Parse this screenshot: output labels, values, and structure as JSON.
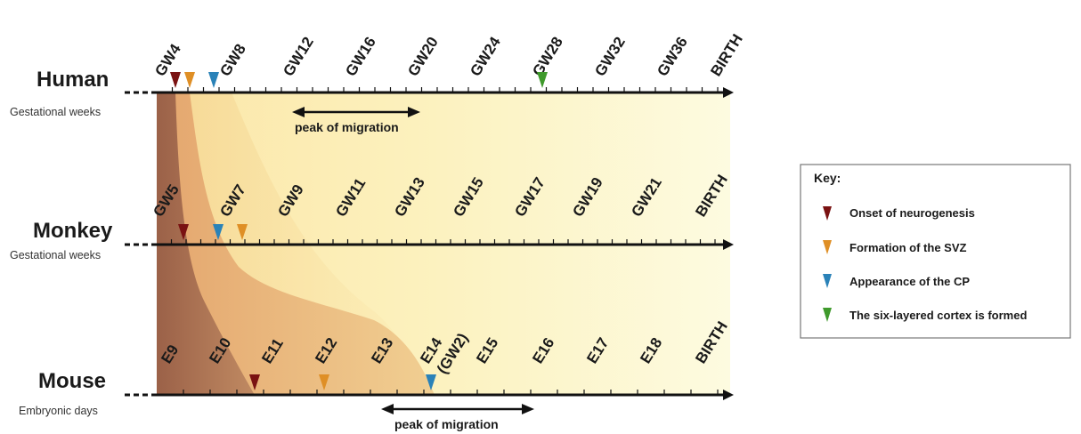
{
  "colors": {
    "onset": "#7a1212",
    "svz": "#df8f26",
    "cp": "#2a82b8",
    "six_layer": "#3f9a2c",
    "axis": "#111111"
  },
  "timelines": [
    {
      "id": "human",
      "species": "Human",
      "unit_label": "Gestational weeks",
      "ticks": [
        "GW4",
        "GW8",
        "GW12",
        "GW16",
        "GW20",
        "GW24",
        "GW28",
        "GW32",
        "GW36",
        "BIRTH"
      ],
      "peak_label": "peak of migration"
    },
    {
      "id": "monkey",
      "species": "Monkey",
      "unit_label": "Gestational weeks",
      "ticks": [
        "GW5",
        "GW7",
        "GW9",
        "GW11",
        "GW13",
        "GW15",
        "GW17",
        "GW19",
        "GW21",
        "BIRTH"
      ],
      "peak_label": ""
    },
    {
      "id": "mouse",
      "species": "Mouse",
      "unit_label": "Embryonic days",
      "ticks": [
        "E9",
        "E10",
        "E11",
        "E12",
        "E13",
        "E14\n(GW2)",
        "E15",
        "E16",
        "E17",
        "E18",
        "BIRTH"
      ],
      "peak_label": "peak of migration"
    }
  ],
  "key": {
    "title": "Key:",
    "items": [
      {
        "marker": "onset",
        "label": "Onset of neurogenesis"
      },
      {
        "marker": "svz",
        "label": "Formation of the SVZ"
      },
      {
        "marker": "cp",
        "label": "Appearance of the CP"
      },
      {
        "marker": "six_layer",
        "label": "The six-layered cortex is formed"
      }
    ]
  }
}
